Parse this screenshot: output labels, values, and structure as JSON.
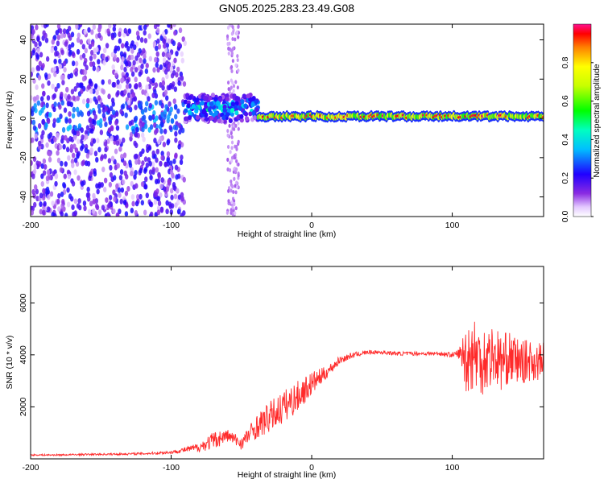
{
  "chart_data": [
    {
      "type": "heatmap",
      "title": "GN05.2025.283.23.49.G08",
      "xlabel": "Height of straight line (km)",
      "ylabel": "Frequency (Hz)",
      "xlim": [
        -200,
        165
      ],
      "ylim": [
        -50,
        48
      ],
      "xticks": [
        -200,
        -100,
        0,
        100
      ],
      "xtick_labels": [
        "-200",
        "-100",
        "0",
        "100"
      ],
      "yticks": [
        -40,
        -20,
        0,
        20,
        40
      ],
      "ytick_labels": [
        "-40",
        "-20",
        "0",
        "20",
        "40"
      ],
      "colorbar": {
        "label": "Normalized spectral amplitude",
        "range": [
          0,
          1
        ],
        "ticks": [
          0.0,
          0.2,
          0.4,
          0.6,
          0.8
        ],
        "tick_labels": [
          "0.0",
          "0.2",
          "0.4",
          "0.6",
          "0.8"
        ]
      },
      "regions": [
        {
          "x_from": -200,
          "x_to": -90,
          "description": "broadband noise",
          "amplitude": 0.15
        },
        {
          "x_from": -90,
          "x_to": -38,
          "center_frequency_hz": 5,
          "amplitude": 0.4
        },
        {
          "x_from": -38,
          "x_to": 165,
          "center_frequency_hz": 1,
          "amplitude": 0.9
        }
      ]
    },
    {
      "type": "line",
      "title": "",
      "xlabel": "Height of straight line (km)",
      "ylabel": "SNR (10 * v/v)",
      "xlim": [
        -200,
        165
      ],
      "ylim": [
        0,
        7400
      ],
      "xticks": [
        -200,
        -100,
        0,
        100
      ],
      "xtick_labels": [
        "-200",
        "-100",
        "0",
        "100"
      ],
      "yticks": [
        2000,
        4000,
        6000
      ],
      "ytick_labels": [
        "2000",
        "4000",
        "6000"
      ],
      "color": "#ff2a2a",
      "series": [
        {
          "x": [
            -200,
            -180,
            -160,
            -140,
            -120,
            -100,
            -90,
            -80,
            -70,
            -60,
            -50,
            -40,
            -30,
            -20,
            -10,
            0,
            10,
            20,
            30,
            40,
            50,
            60,
            70,
            80,
            90,
            100,
            105,
            110,
            115,
            120,
            125,
            130,
            135,
            140,
            145,
            150,
            155,
            160,
            165
          ],
          "y": [
            150,
            150,
            170,
            180,
            200,
            250,
            350,
            450,
            700,
            900,
            600,
            1200,
            1600,
            2000,
            2400,
            2900,
            3300,
            3800,
            4000,
            4100,
            4100,
            4050,
            4050,
            4050,
            4050,
            4000,
            4050,
            3900,
            4100,
            3800,
            3900,
            4000,
            3700,
            3900,
            3800,
            3700,
            3800,
            3700,
            3800
          ],
          "spread": [
            60,
            60,
            70,
            80,
            90,
            120,
            200,
            350,
            700,
            500,
            500,
            900,
            1200,
            1300,
            1200,
            900,
            500,
            300,
            200,
            150,
            150,
            150,
            150,
            150,
            150,
            200,
            400,
            2800,
            3000,
            2800,
            2600,
            2400,
            2200,
            2000,
            1800,
            1700,
            1600,
            1500,
            1400
          ]
        }
      ]
    }
  ]
}
